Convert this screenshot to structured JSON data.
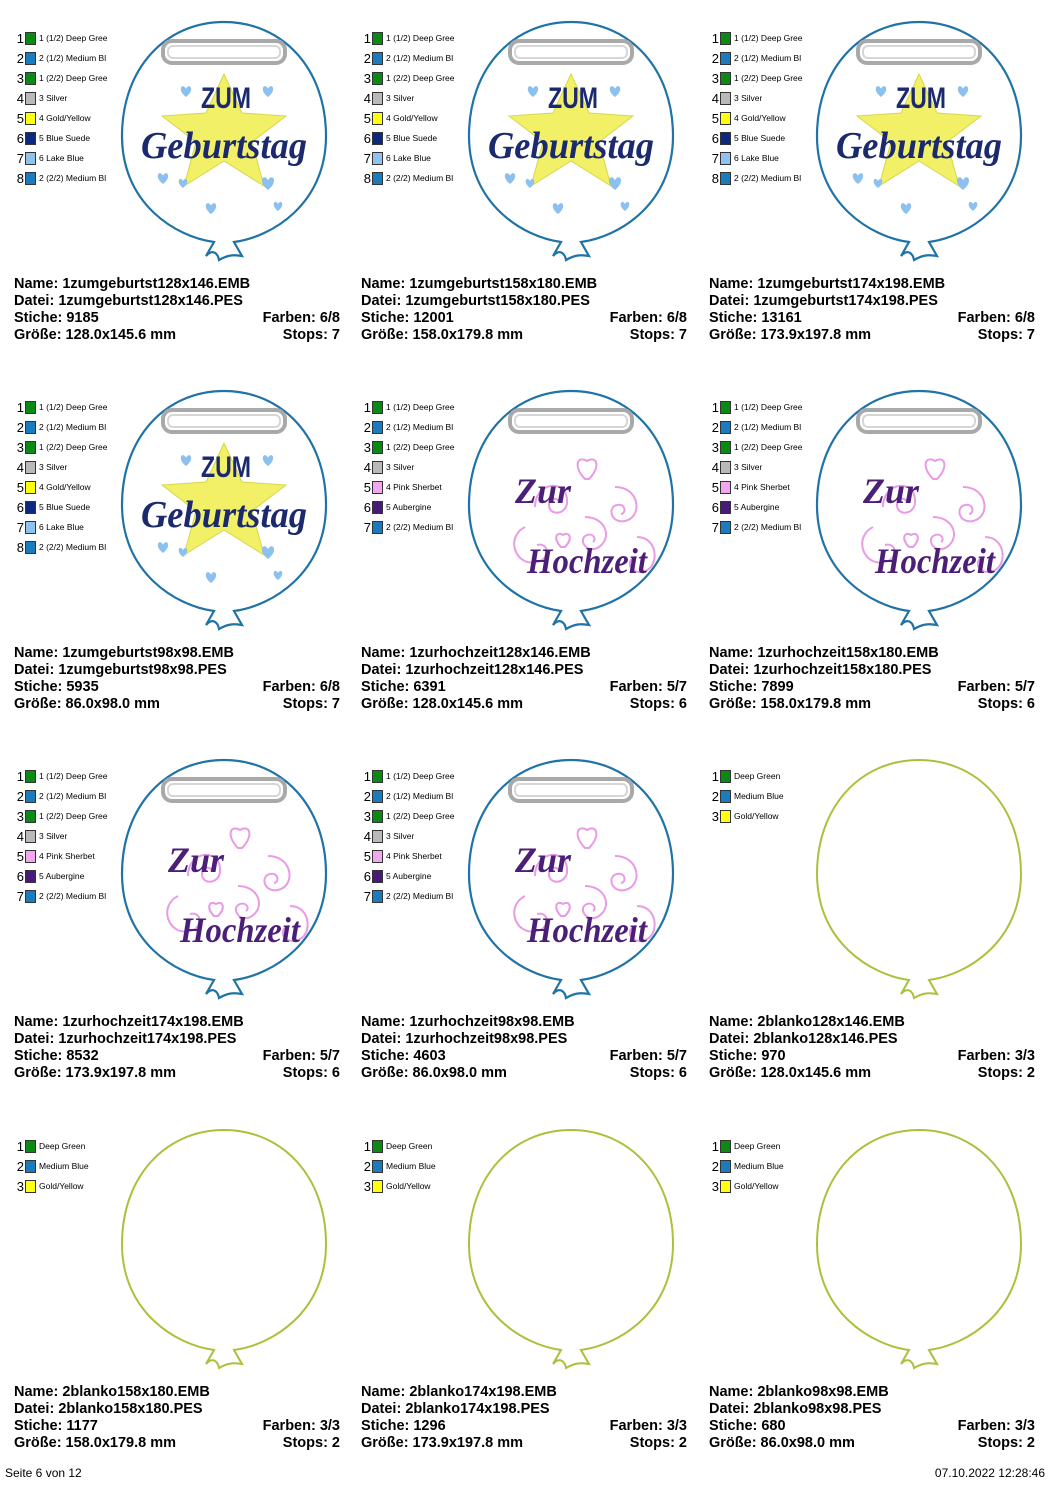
{
  "cells": [
    {
      "type": "geb",
      "colors": [
        {
          "num": "1",
          "name": "1 (1/2) Deep Gree",
          "hex": "#0a8a14"
        },
        {
          "num": "2",
          "name": "2 (1/2) Medium Bl",
          "hex": "#1a7bbf"
        },
        {
          "num": "3",
          "name": "1 (2/2) Deep Gree",
          "hex": "#0a8a14"
        },
        {
          "num": "4",
          "name": "3 Silver",
          "hex": "#b9b9b9"
        },
        {
          "num": "5",
          "name": "4 Gold/Yellow",
          "hex": "#ffff10"
        },
        {
          "num": "6",
          "name": "5 Blue Suede",
          "hex": "#0c2880"
        },
        {
          "num": "7",
          "name": "6 Lake Blue",
          "hex": "#8fc2ef"
        },
        {
          "num": "8",
          "name": "2 (2/2) Medium Bl",
          "hex": "#1a7bbf"
        }
      ],
      "name_line": "Name: 1zumgeburtst128x146.EMB",
      "datei": "Datei: 1zumgeburtst128x146.PES",
      "stiche": "Stiche: 9185",
      "farben": "Farben: 6/8",
      "groesse": "Größe: 128.0x145.6 mm",
      "stops": "Stops: 7"
    },
    {
      "type": "geb",
      "colors": [
        {
          "num": "1",
          "name": "1 (1/2) Deep Gree",
          "hex": "#0a8a14"
        },
        {
          "num": "2",
          "name": "2 (1/2) Medium Bl",
          "hex": "#1a7bbf"
        },
        {
          "num": "3",
          "name": "1 (2/2) Deep Gree",
          "hex": "#0a8a14"
        },
        {
          "num": "4",
          "name": "3 Silver",
          "hex": "#b9b9b9"
        },
        {
          "num": "5",
          "name": "4 Gold/Yellow",
          "hex": "#ffff10"
        },
        {
          "num": "6",
          "name": "5 Blue Suede",
          "hex": "#0c2880"
        },
        {
          "num": "7",
          "name": "6 Lake Blue",
          "hex": "#8fc2ef"
        },
        {
          "num": "8",
          "name": "2 (2/2) Medium Bl",
          "hex": "#1a7bbf"
        }
      ],
      "name_line": "Name: 1zumgeburtst158x180.EMB",
      "datei": "Datei: 1zumgeburtst158x180.PES",
      "stiche": "Stiche: 12001",
      "farben": "Farben: 6/8",
      "groesse": "Größe: 158.0x179.8 mm",
      "stops": "Stops: 7"
    },
    {
      "type": "geb",
      "colors": [
        {
          "num": "1",
          "name": "1 (1/2) Deep Gree",
          "hex": "#0a8a14"
        },
        {
          "num": "2",
          "name": "2 (1/2) Medium Bl",
          "hex": "#1a7bbf"
        },
        {
          "num": "3",
          "name": "1 (2/2) Deep Gree",
          "hex": "#0a8a14"
        },
        {
          "num": "4",
          "name": "3 Silver",
          "hex": "#b9b9b9"
        },
        {
          "num": "5",
          "name": "4 Gold/Yellow",
          "hex": "#ffff10"
        },
        {
          "num": "6",
          "name": "5 Blue Suede",
          "hex": "#0c2880"
        },
        {
          "num": "7",
          "name": "6 Lake Blue",
          "hex": "#8fc2ef"
        },
        {
          "num": "8",
          "name": "2 (2/2) Medium Bl",
          "hex": "#1a7bbf"
        }
      ],
      "name_line": "Name: 1zumgeburtst174x198.EMB",
      "datei": "Datei: 1zumgeburtst174x198.PES",
      "stiche": "Stiche: 13161",
      "farben": "Farben: 6/8",
      "groesse": "Größe: 173.9x197.8 mm",
      "stops": "Stops: 7"
    },
    {
      "type": "geb",
      "colors": [
        {
          "num": "1",
          "name": "1 (1/2) Deep Gree",
          "hex": "#0a8a14"
        },
        {
          "num": "2",
          "name": "2 (1/2) Medium Bl",
          "hex": "#1a7bbf"
        },
        {
          "num": "3",
          "name": "1 (2/2) Deep Gree",
          "hex": "#0a8a14"
        },
        {
          "num": "4",
          "name": "3 Silver",
          "hex": "#b9b9b9"
        },
        {
          "num": "5",
          "name": "4 Gold/Yellow",
          "hex": "#ffff10"
        },
        {
          "num": "6",
          "name": "5 Blue Suede",
          "hex": "#0c2880"
        },
        {
          "num": "7",
          "name": "6 Lake Blue",
          "hex": "#8fc2ef"
        },
        {
          "num": "8",
          "name": "2 (2/2) Medium Bl",
          "hex": "#1a7bbf"
        }
      ],
      "name_line": "Name: 1zumgeburtst98x98.EMB",
      "datei": "Datei: 1zumgeburtst98x98.PES",
      "stiche": "Stiche: 5935",
      "farben": "Farben: 6/8",
      "groesse": "Größe: 86.0x98.0 mm",
      "stops": "Stops: 7"
    },
    {
      "type": "hoch",
      "colors": [
        {
          "num": "1",
          "name": "1 (1/2) Deep Gree",
          "hex": "#0a8a14"
        },
        {
          "num": "2",
          "name": "2 (1/2) Medium Bl",
          "hex": "#1a7bbf"
        },
        {
          "num": "3",
          "name": "1 (2/2) Deep Gree",
          "hex": "#0a8a14"
        },
        {
          "num": "4",
          "name": "3 Silver",
          "hex": "#b9b9b9"
        },
        {
          "num": "5",
          "name": "4 Pink Sherbet",
          "hex": "#f2a6ee"
        },
        {
          "num": "6",
          "name": "5 Aubergine",
          "hex": "#4a1a7a"
        },
        {
          "num": "7",
          "name": "2 (2/2) Medium Bl",
          "hex": "#1a7bbf"
        }
      ],
      "name_line": "Name: 1zurhochzeit128x146.EMB",
      "datei": "Datei: 1zurhochzeit128x146.PES",
      "stiche": "Stiche: 6391",
      "farben": "Farben: 5/7",
      "groesse": "Größe: 128.0x145.6 mm",
      "stops": "Stops: 6"
    },
    {
      "type": "hoch",
      "colors": [
        {
          "num": "1",
          "name": "1 (1/2) Deep Gree",
          "hex": "#0a8a14"
        },
        {
          "num": "2",
          "name": "2 (1/2) Medium Bl",
          "hex": "#1a7bbf"
        },
        {
          "num": "3",
          "name": "1 (2/2) Deep Gree",
          "hex": "#0a8a14"
        },
        {
          "num": "4",
          "name": "3 Silver",
          "hex": "#b9b9b9"
        },
        {
          "num": "5",
          "name": "4 Pink Sherbet",
          "hex": "#f2a6ee"
        },
        {
          "num": "6",
          "name": "5 Aubergine",
          "hex": "#4a1a7a"
        },
        {
          "num": "7",
          "name": "2 (2/2) Medium Bl",
          "hex": "#1a7bbf"
        }
      ],
      "name_line": "Name: 1zurhochzeit158x180.EMB",
      "datei": "Datei: 1zurhochzeit158x180.PES",
      "stiche": "Stiche: 7899",
      "farben": "Farben: 5/7",
      "groesse": "Größe: 158.0x179.8 mm",
      "stops": "Stops: 6"
    },
    {
      "type": "hoch",
      "colors": [
        {
          "num": "1",
          "name": "1 (1/2) Deep Gree",
          "hex": "#0a8a14"
        },
        {
          "num": "2",
          "name": "2 (1/2) Medium Bl",
          "hex": "#1a7bbf"
        },
        {
          "num": "3",
          "name": "1 (2/2) Deep Gree",
          "hex": "#0a8a14"
        },
        {
          "num": "4",
          "name": "3 Silver",
          "hex": "#b9b9b9"
        },
        {
          "num": "5",
          "name": "4 Pink Sherbet",
          "hex": "#f2a6ee"
        },
        {
          "num": "6",
          "name": "5 Aubergine",
          "hex": "#4a1a7a"
        },
        {
          "num": "7",
          "name": "2 (2/2) Medium Bl",
          "hex": "#1a7bbf"
        }
      ],
      "name_line": "Name: 1zurhochzeit174x198.EMB",
      "datei": "Datei: 1zurhochzeit174x198.PES",
      "stiche": "Stiche: 8532",
      "farben": "Farben: 5/7",
      "groesse": "Größe: 173.9x197.8 mm",
      "stops": "Stops: 6"
    },
    {
      "type": "hoch",
      "colors": [
        {
          "num": "1",
          "name": "1 (1/2) Deep Gree",
          "hex": "#0a8a14"
        },
        {
          "num": "2",
          "name": "2 (1/2) Medium Bl",
          "hex": "#1a7bbf"
        },
        {
          "num": "3",
          "name": "1 (2/2) Deep Gree",
          "hex": "#0a8a14"
        },
        {
          "num": "4",
          "name": "3 Silver",
          "hex": "#b9b9b9"
        },
        {
          "num": "5",
          "name": "4 Pink Sherbet",
          "hex": "#f2a6ee"
        },
        {
          "num": "6",
          "name": "5 Aubergine",
          "hex": "#4a1a7a"
        },
        {
          "num": "7",
          "name": "2 (2/2) Medium Bl",
          "hex": "#1a7bbf"
        }
      ],
      "name_line": "Name: 1zurhochzeit98x98.EMB",
      "datei": "Datei: 1zurhochzeit98x98.PES",
      "stiche": "Stiche: 4603",
      "farben": "Farben: 5/7",
      "groesse": "Größe: 86.0x98.0 mm",
      "stops": "Stops: 6"
    },
    {
      "type": "blank",
      "colors": [
        {
          "num": "1",
          "name": "Deep Green",
          "hex": "#0a8a14"
        },
        {
          "num": "2",
          "name": "Medium Blue",
          "hex": "#1a7bbf"
        },
        {
          "num": "3",
          "name": "Gold/Yellow",
          "hex": "#ffff10"
        }
      ],
      "name_line": "Name: 2blanko128x146.EMB",
      "datei": "Datei: 2blanko128x146.PES",
      "stiche": "Stiche: 970",
      "farben": "Farben: 3/3",
      "groesse": "Größe: 128.0x145.6 mm",
      "stops": "Stops: 2"
    },
    {
      "type": "blank",
      "colors": [
        {
          "num": "1",
          "name": "Deep Green",
          "hex": "#0a8a14"
        },
        {
          "num": "2",
          "name": "Medium Blue",
          "hex": "#1a7bbf"
        },
        {
          "num": "3",
          "name": "Gold/Yellow",
          "hex": "#ffff10"
        }
      ],
      "name_line": "Name: 2blanko158x180.EMB",
      "datei": "Datei: 2blanko158x180.PES",
      "stiche": "Stiche: 1177",
      "farben": "Farben: 3/3",
      "groesse": "Größe: 158.0x179.8 mm",
      "stops": "Stops: 2"
    },
    {
      "type": "blank",
      "colors": [
        {
          "num": "1",
          "name": "Deep Green",
          "hex": "#0a8a14"
        },
        {
          "num": "2",
          "name": "Medium Blue",
          "hex": "#1a7bbf"
        },
        {
          "num": "3",
          "name": "Gold/Yellow",
          "hex": "#ffff10"
        }
      ],
      "name_line": "Name: 2blanko174x198.EMB",
      "datei": "Datei: 2blanko174x198.PES",
      "stiche": "Stiche: 1296",
      "farben": "Farben: 3/3",
      "groesse": "Größe: 173.9x197.8 mm",
      "stops": "Stops: 2"
    },
    {
      "type": "blank",
      "colors": [
        {
          "num": "1",
          "name": "Deep Green",
          "hex": "#0a8a14"
        },
        {
          "num": "2",
          "name": "Medium Blue",
          "hex": "#1a7bbf"
        },
        {
          "num": "3",
          "name": "Gold/Yellow",
          "hex": "#ffff10"
        }
      ],
      "name_line": "Name: 2blanko98x98.EMB",
      "datei": "Datei: 2blanko98x98.PES",
      "stiche": "Stiche: 680",
      "farben": "Farben: 3/3",
      "groesse": "Größe: 86.0x98.0 mm",
      "stops": "Stops: 2"
    }
  ],
  "art_text": {
    "zum": "ZUM",
    "geburtstag": "Geburtstag",
    "zur": "Zur",
    "hochzeit": "Hochzeit"
  },
  "art_colors": {
    "outline_blue": "#1f73a6",
    "outline_lime": "#a8c23c",
    "silver": "#a9a9a9",
    "star_yellow": "#f2f067",
    "navy_text": "#1b2a6e",
    "heart_blue": "#8cc0ee",
    "pink": "#e99be6",
    "aubergine": "#4b1f78"
  },
  "footer": {
    "page": "Seite 6 von 12",
    "datetime": "07.10.2022 12:28:46"
  }
}
